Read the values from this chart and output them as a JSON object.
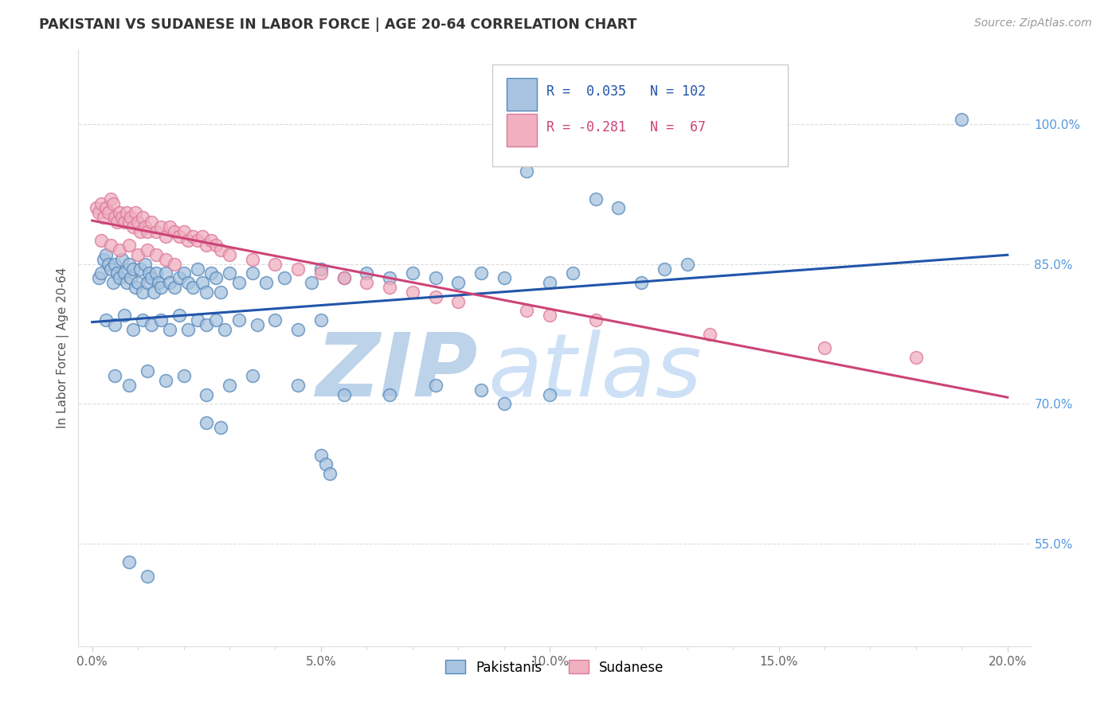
{
  "title": "PAKISTANI VS SUDANESE IN LABOR FORCE | AGE 20-64 CORRELATION CHART",
  "source_text": "Source: ZipAtlas.com",
  "ylabel": "In Labor Force | Age 20-64",
  "xlabel_ticks": [
    "0.0%",
    "",
    "",
    "",
    "",
    "5.0%",
    "",
    "",
    "",
    "",
    "10.0%",
    "",
    "",
    "",
    "",
    "15.0%",
    "",
    "",
    "",
    "",
    "20.0%"
  ],
  "xlabel_vals": [
    0,
    1,
    2,
    3,
    4,
    5,
    6,
    7,
    8,
    9,
    10,
    11,
    12,
    13,
    14,
    15,
    16,
    17,
    18,
    19,
    20
  ],
  "xlabel_major_ticks": [
    0.0,
    5.0,
    10.0,
    15.0,
    20.0
  ],
  "xlabel_major_labels": [
    "0.0%",
    "5.0%",
    "10.0%",
    "15.0%",
    "20.0%"
  ],
  "ylabel_ticks": [
    55.0,
    70.0,
    85.0,
    100.0
  ],
  "ylabel_labels": [
    "55.0%",
    "70.0%",
    "85.0%",
    "100.0%"
  ],
  "xlim": [
    -0.3,
    20.5
  ],
  "ylim": [
    44.0,
    108.0
  ],
  "blue_R": 0.035,
  "blue_N": 102,
  "pink_R": -0.281,
  "pink_N": 67,
  "legend_label_blue": "Pakistanis",
  "legend_label_pink": "Sudanese",
  "blue_color": "#a8c4e0",
  "blue_edge_color": "#5588bb",
  "blue_line_color": "#2255aa",
  "pink_color": "#f0b0c0",
  "pink_edge_color": "#dd7799",
  "pink_line_color": "#cc4477",
  "watermark_zip_color": "#b8cfe8",
  "watermark_atlas_color": "#c8ddf0",
  "grid_color": "#dddddd",
  "title_color": "#333333",
  "source_color": "#999999",
  "tick_color_y": "#5599dd",
  "tick_color_x": "#666666",
  "blue_scatter": [
    [
      0.15,
      83.5
    ],
    [
      0.2,
      84.0
    ],
    [
      0.25,
      85.5
    ],
    [
      0.3,
      86.0
    ],
    [
      0.35,
      85.0
    ],
    [
      0.4,
      84.5
    ],
    [
      0.45,
      83.0
    ],
    [
      0.5,
      85.0
    ],
    [
      0.55,
      84.0
    ],
    [
      0.6,
      83.5
    ],
    [
      0.65,
      85.5
    ],
    [
      0.7,
      84.0
    ],
    [
      0.75,
      83.0
    ],
    [
      0.8,
      85.0
    ],
    [
      0.85,
      83.5
    ],
    [
      0.9,
      84.5
    ],
    [
      0.95,
      82.5
    ],
    [
      1.0,
      83.0
    ],
    [
      1.05,
      84.5
    ],
    [
      1.1,
      82.0
    ],
    [
      1.15,
      85.0
    ],
    [
      1.2,
      83.0
    ],
    [
      1.25,
      84.0
    ],
    [
      1.3,
      83.5
    ],
    [
      1.35,
      82.0
    ],
    [
      1.4,
      84.0
    ],
    [
      1.45,
      83.0
    ],
    [
      1.5,
      82.5
    ],
    [
      1.6,
      84.0
    ],
    [
      1.7,
      83.0
    ],
    [
      1.8,
      82.5
    ],
    [
      1.9,
      83.5
    ],
    [
      2.0,
      84.0
    ],
    [
      2.1,
      83.0
    ],
    [
      2.2,
      82.5
    ],
    [
      2.3,
      84.5
    ],
    [
      2.4,
      83.0
    ],
    [
      2.5,
      82.0
    ],
    [
      2.6,
      84.0
    ],
    [
      2.7,
      83.5
    ],
    [
      2.8,
      82.0
    ],
    [
      3.0,
      84.0
    ],
    [
      3.2,
      83.0
    ],
    [
      3.5,
      84.0
    ],
    [
      3.8,
      83.0
    ],
    [
      4.2,
      83.5
    ],
    [
      4.8,
      83.0
    ],
    [
      5.0,
      84.5
    ],
    [
      5.5,
      83.5
    ],
    [
      6.0,
      84.0
    ],
    [
      6.5,
      83.5
    ],
    [
      7.0,
      84.0
    ],
    [
      7.5,
      83.5
    ],
    [
      8.0,
      83.0
    ],
    [
      8.5,
      84.0
    ],
    [
      9.0,
      83.5
    ],
    [
      9.5,
      95.0
    ],
    [
      10.0,
      83.0
    ],
    [
      10.5,
      84.0
    ],
    [
      11.0,
      92.0
    ],
    [
      11.5,
      91.0
    ],
    [
      12.0,
      83.0
    ],
    [
      12.5,
      84.5
    ],
    [
      13.0,
      85.0
    ],
    [
      0.3,
      79.0
    ],
    [
      0.5,
      78.5
    ],
    [
      0.7,
      79.5
    ],
    [
      0.9,
      78.0
    ],
    [
      1.1,
      79.0
    ],
    [
      1.3,
      78.5
    ],
    [
      1.5,
      79.0
    ],
    [
      1.7,
      78.0
    ],
    [
      1.9,
      79.5
    ],
    [
      2.1,
      78.0
    ],
    [
      2.3,
      79.0
    ],
    [
      2.5,
      78.5
    ],
    [
      2.7,
      79.0
    ],
    [
      2.9,
      78.0
    ],
    [
      3.2,
      79.0
    ],
    [
      3.6,
      78.5
    ],
    [
      4.0,
      79.0
    ],
    [
      4.5,
      78.0
    ],
    [
      5.0,
      79.0
    ],
    [
      0.5,
      73.0
    ],
    [
      0.8,
      72.0
    ],
    [
      1.2,
      73.5
    ],
    [
      1.6,
      72.5
    ],
    [
      2.0,
      73.0
    ],
    [
      2.5,
      71.0
    ],
    [
      3.0,
      72.0
    ],
    [
      3.5,
      73.0
    ],
    [
      4.5,
      72.0
    ],
    [
      5.5,
      71.0
    ],
    [
      7.5,
      72.0
    ],
    [
      8.5,
      71.5
    ],
    [
      9.0,
      70.0
    ],
    [
      10.0,
      71.0
    ],
    [
      5.0,
      64.5
    ],
    [
      5.1,
      63.5
    ],
    [
      5.2,
      62.5
    ],
    [
      6.5,
      71.0
    ],
    [
      2.5,
      68.0
    ],
    [
      2.8,
      67.5
    ],
    [
      0.8,
      53.0
    ],
    [
      1.2,
      51.5
    ],
    [
      19.0,
      100.5
    ]
  ],
  "pink_scatter": [
    [
      0.1,
      91.0
    ],
    [
      0.15,
      90.5
    ],
    [
      0.2,
      91.5
    ],
    [
      0.25,
      90.0
    ],
    [
      0.3,
      91.0
    ],
    [
      0.35,
      90.5
    ],
    [
      0.4,
      92.0
    ],
    [
      0.45,
      91.5
    ],
    [
      0.5,
      90.0
    ],
    [
      0.55,
      89.5
    ],
    [
      0.6,
      90.5
    ],
    [
      0.65,
      90.0
    ],
    [
      0.7,
      89.5
    ],
    [
      0.75,
      90.5
    ],
    [
      0.8,
      89.5
    ],
    [
      0.85,
      90.0
    ],
    [
      0.9,
      89.0
    ],
    [
      0.95,
      90.5
    ],
    [
      1.0,
      89.5
    ],
    [
      1.05,
      88.5
    ],
    [
      1.1,
      90.0
    ],
    [
      1.15,
      89.0
    ],
    [
      1.2,
      88.5
    ],
    [
      1.3,
      89.5
    ],
    [
      1.4,
      88.5
    ],
    [
      1.5,
      89.0
    ],
    [
      1.6,
      88.0
    ],
    [
      1.7,
      89.0
    ],
    [
      1.8,
      88.5
    ],
    [
      1.9,
      88.0
    ],
    [
      2.0,
      88.5
    ],
    [
      2.1,
      87.5
    ],
    [
      2.2,
      88.0
    ],
    [
      2.3,
      87.5
    ],
    [
      2.4,
      88.0
    ],
    [
      2.5,
      87.0
    ],
    [
      2.6,
      87.5
    ],
    [
      2.7,
      87.0
    ],
    [
      2.8,
      86.5
    ],
    [
      0.2,
      87.5
    ],
    [
      0.4,
      87.0
    ],
    [
      0.6,
      86.5
    ],
    [
      0.8,
      87.0
    ],
    [
      1.0,
      86.0
    ],
    [
      1.2,
      86.5
    ],
    [
      1.4,
      86.0
    ],
    [
      1.6,
      85.5
    ],
    [
      1.8,
      85.0
    ],
    [
      3.0,
      86.0
    ],
    [
      3.5,
      85.5
    ],
    [
      4.0,
      85.0
    ],
    [
      4.5,
      84.5
    ],
    [
      5.0,
      84.0
    ],
    [
      5.5,
      83.5
    ],
    [
      6.0,
      83.0
    ],
    [
      6.5,
      82.5
    ],
    [
      7.0,
      82.0
    ],
    [
      7.5,
      81.5
    ],
    [
      8.0,
      81.0
    ],
    [
      9.5,
      80.0
    ],
    [
      10.0,
      79.5
    ],
    [
      11.0,
      79.0
    ],
    [
      13.5,
      77.5
    ],
    [
      16.0,
      76.0
    ],
    [
      18.0,
      75.0
    ]
  ]
}
